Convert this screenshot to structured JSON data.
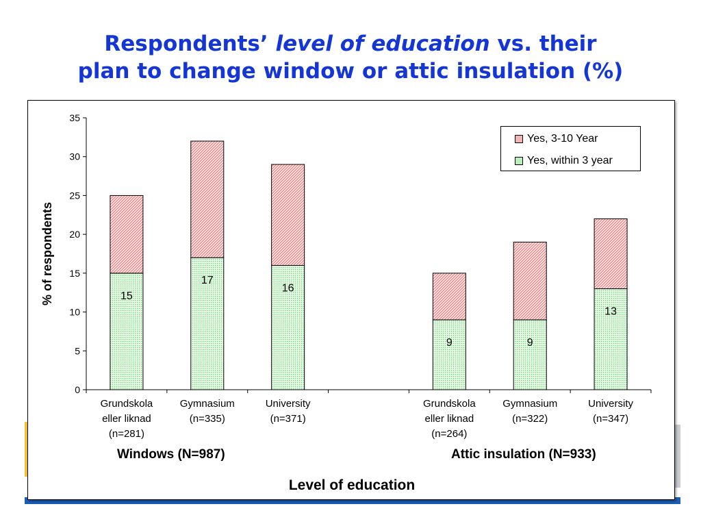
{
  "title": {
    "prefix": "Respondents’",
    "italic": "level of education",
    "suffix": "vs. their",
    "line2": "plan to change window or attic insulation (%)"
  },
  "chart_data": {
    "type": "bar",
    "stacked": true,
    "groups": [
      {
        "label": "Windows (N=987)",
        "categories": [
          {
            "name": "Grundskola eller liknad",
            "n": "(n=281)"
          },
          {
            "name": "Gymnasium",
            "n": "(n=335)"
          },
          {
            "name": "University",
            "n": "(n=371)"
          }
        ]
      },
      {
        "label": "Attic insulation (N=933)",
        "categories": [
          {
            "name": "Grundskola eller liknad",
            "n": "(n=264)"
          },
          {
            "name": "Gymnasium",
            "n": "(n=322)"
          },
          {
            "name": "University",
            "n": "(n=347)"
          }
        ]
      }
    ],
    "series": [
      {
        "name": "Yes, within 3 year",
        "values": [
          15,
          17,
          16,
          9,
          9,
          13
        ],
        "labels": [
          "15",
          "17",
          "16",
          "9",
          "9",
          "13"
        ],
        "color": "#b8f0b8"
      },
      {
        "name": "Yes, 3-10 Year",
        "values": [
          10,
          15,
          13,
          6,
          10,
          9
        ],
        "color": "#f2b4b4"
      }
    ],
    "ylabel": "% of respondents",
    "xlabel": "Level of education",
    "ylim": [
      0,
      35
    ],
    "yticks": [
      "0",
      "5",
      "10",
      "15",
      "20",
      "25",
      "30",
      "35"
    ],
    "grid": false,
    "legend_position": "top-right",
    "legend_order": [
      "Yes, 3-10 Year",
      "Yes, within 3 year"
    ]
  }
}
